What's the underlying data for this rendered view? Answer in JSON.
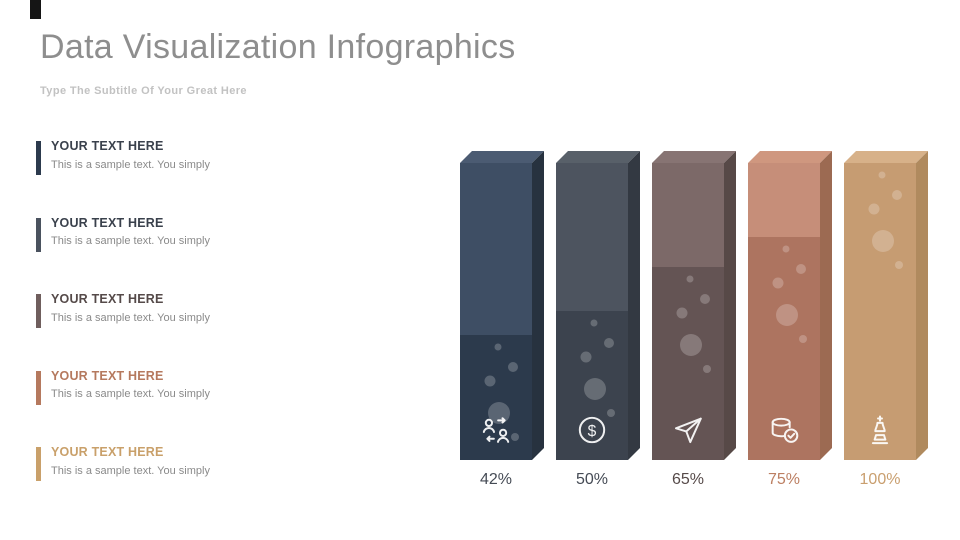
{
  "header": {
    "title": "Data Visualization Infographics",
    "subtitle": "Type The Subtitle Of Your Great Here"
  },
  "legend": {
    "text_color": "#8a8a8a",
    "items": [
      {
        "title": "YOUR TEXT HERE",
        "text": "This is a sample text. You simply",
        "accent": "#2c3a4d",
        "title_color": "#3a414c"
      },
      {
        "title": "YOUR TEXT HERE",
        "text": "This is a sample text. You simply",
        "accent": "#4a525e",
        "title_color": "#3a414c"
      },
      {
        "title": "YOUR TEXT HERE",
        "text": "This is a sample text. You simply",
        "accent": "#6f5e5d",
        "title_color": "#554a49"
      },
      {
        "title": "YOUR TEXT HERE",
        "text": "This is a sample text. You simply",
        "accent": "#b5795e",
        "title_color": "#b5795e"
      },
      {
        "title": "YOUR TEXT HERE",
        "text": "This is a sample text. You simply",
        "accent": "#c9a06a",
        "title_color": "#c9a06a"
      }
    ]
  },
  "chart_data": {
    "type": "bar",
    "title": "Data Visualization Infographics",
    "xlabel": "",
    "ylabel": "",
    "ylim": [
      0,
      100
    ],
    "grid": false,
    "legend_position": "left",
    "categories": [
      "42%",
      "50%",
      "65%",
      "75%",
      "100%"
    ],
    "values": [
      42,
      50,
      65,
      75,
      100
    ],
    "bars": [
      {
        "label": "42%",
        "value": 42,
        "icon": "users-icon",
        "label_color": "#454b55",
        "color_upper": "#3e4e64",
        "color_lower": "#2c3a4c",
        "color_side": "#27323f",
        "color_cap": "#4b5b72"
      },
      {
        "label": "50%",
        "value": 50,
        "icon": "dollar-icon",
        "label_color": "#454b55",
        "color_upper": "#4d545f",
        "color_lower": "#3c434e",
        "color_side": "#333942",
        "color_cap": "#586069"
      },
      {
        "label": "65%",
        "value": 65,
        "icon": "paper-plane-icon",
        "label_color": "#564a49",
        "color_upper": "#7c6968",
        "color_lower": "#645454",
        "color_side": "#574947",
        "color_cap": "#877473"
      },
      {
        "label": "75%",
        "value": 75,
        "icon": "database-icon",
        "label_color": "#bc7f62",
        "color_upper": "#c68e79",
        "color_lower": "#ad7460",
        "color_side": "#9c6a52",
        "color_cap": "#cf977f"
      },
      {
        "label": "100%",
        "value": 100,
        "icon": "chess-piece-icon",
        "label_color": "#c99f6f",
        "color_upper": "#cda67c",
        "color_lower": "#c69c72",
        "color_side": "#b08a5e",
        "color_cap": "#d7b189"
      }
    ]
  }
}
